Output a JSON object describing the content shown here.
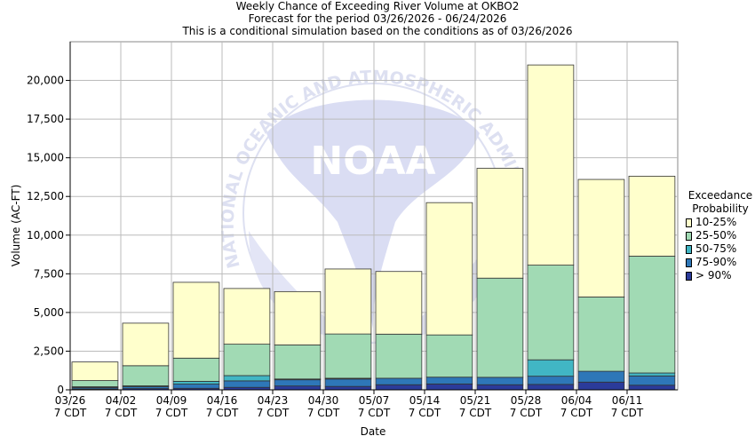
{
  "chart_data": {
    "type": "bar",
    "stacked": true,
    "title": "Weekly Chance of Exceeding River Volume at OKBO2",
    "subtitle_1": "Forecast for the period 03/26/2026 - 06/24/2026",
    "subtitle_2": "This is a conditional simulation based on the conditions as of 03/26/2026",
    "xlabel": "Date",
    "ylabel": "Volume (AC-FT)",
    "ylim": [
      0,
      22500
    ],
    "yticks": [
      "0",
      "2,500",
      "5,000",
      "7,500",
      "10,000",
      "12,500",
      "15,000",
      "17,500",
      "20,000"
    ],
    "ytick_values": [
      0,
      2500,
      5000,
      7500,
      10000,
      12500,
      15000,
      17500,
      20000
    ],
    "categories": [
      {
        "date": "03/26",
        "tz": "7 CDT"
      },
      {
        "date": "04/02",
        "tz": "7 CDT"
      },
      {
        "date": "04/09",
        "tz": "7 CDT"
      },
      {
        "date": "04/16",
        "tz": "7 CDT"
      },
      {
        "date": "04/23",
        "tz": "7 CDT"
      },
      {
        "date": "04/30",
        "tz": "7 CDT"
      },
      {
        "date": "05/07",
        "tz": "7 CDT"
      },
      {
        "date": "05/14",
        "tz": "7 CDT"
      },
      {
        "date": "05/21",
        "tz": "7 CDT"
      },
      {
        "date": "05/28",
        "tz": "7 CDT"
      },
      {
        "date": "06/04",
        "tz": "7 CDT"
      },
      {
        "date": "06/11",
        "tz": "7 CDT"
      }
    ],
    "legend_title_1": "Exceedance",
    "legend_title_2": "Probability",
    "legend_position": "right",
    "grid": true,
    "series": [
      {
        "name": "> 90%",
        "color": "#2b3b9a",
        "values": [
          60,
          80,
          100,
          160,
          250,
          220,
          330,
          380,
          330,
          350,
          500,
          300
        ]
      },
      {
        "name": "75-90%",
        "color": "#2e77b8",
        "values": [
          90,
          120,
          270,
          420,
          400,
          480,
          420,
          440,
          480,
          530,
          700,
          600
        ]
      },
      {
        "name": "50-75%",
        "color": "#41b6c4",
        "values": [
          50,
          60,
          180,
          340,
          50,
          50,
          0,
          0,
          0,
          1060,
          0,
          190
        ]
      },
      {
        "name": "25-50%",
        "color": "#a1dab4",
        "values": [
          400,
          1300,
          1500,
          2030,
          2200,
          2860,
          2850,
          2730,
          6410,
          6120,
          4800,
          7550
        ]
      },
      {
        "name": "10-25%",
        "color": "#ffffcc",
        "values": [
          1200,
          2750,
          4900,
          3600,
          3450,
          4200,
          4050,
          8550,
          7100,
          12940,
          7600,
          5170
        ]
      }
    ]
  },
  "watermark": {
    "emblem_text": "NOAA",
    "ring_text": "NATIONAL OCEANIC AND ATMOSPHERIC ADMINISTRATION"
  }
}
